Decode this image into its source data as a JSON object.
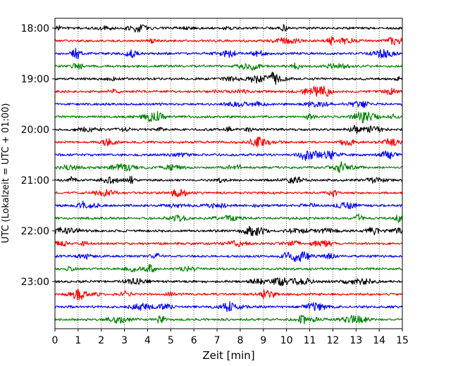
{
  "chart_data": {
    "type": "line",
    "title": "",
    "xlabel": "Zeit  [min]",
    "ylabel": "UTC (Lokalzeit = UTC + 01:00)",
    "xlim": [
      0,
      15
    ],
    "x_ticks": [
      0,
      1,
      2,
      3,
      4,
      5,
      6,
      7,
      8,
      9,
      10,
      11,
      12,
      13,
      14,
      15
    ],
    "x_tick_labels": [
      "0",
      "1",
      "2",
      "3",
      "4",
      "5",
      "6",
      "7",
      "8",
      "9",
      "10",
      "11",
      "12",
      "13",
      "14",
      "15"
    ],
    "y_tick_labels": [
      "18:00",
      "19:00",
      "20:00",
      "21:00",
      "22:00",
      "23:00"
    ],
    "y_tick_positions": [
      "18:00",
      "19:00",
      "20:00",
      "21:00",
      "22:00",
      "23:00"
    ],
    "trace_start_times": [
      "18:00",
      "18:15",
      "18:30",
      "18:45",
      "19:00",
      "19:15",
      "19:30",
      "19:45",
      "20:00",
      "20:15",
      "20:30",
      "20:45",
      "21:00",
      "21:15",
      "21:30",
      "21:45",
      "22:00",
      "22:15",
      "22:30",
      "22:45",
      "23:00",
      "23:15",
      "23:30",
      "23:45"
    ],
    "trace_color_cycle": [
      "#000000",
      "#ff0000",
      "#0000ff",
      "#008000"
    ],
    "trace_minutes": 15,
    "grid": "vertical dotted at each minute",
    "legend": "none"
  }
}
